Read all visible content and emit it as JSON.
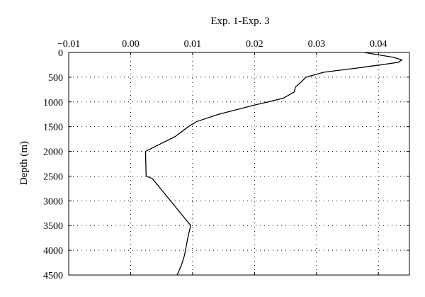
{
  "chart_data": {
    "type": "line",
    "title": "",
    "xlabel": "Exp. 1-Exp. 3",
    "ylabel": "Depth (m)",
    "xlim": [
      -0.01,
      0.045
    ],
    "ylim": [
      0,
      4500
    ],
    "y_inverted": true,
    "x_axis_position": "top",
    "grid": true,
    "x_ticks": [
      -0.01,
      0.0,
      0.01,
      0.02,
      0.03,
      0.04
    ],
    "x_tick_labels": [
      "−0.01",
      "0.00",
      "0.01",
      "0.02",
      "0.03",
      "0.04"
    ],
    "y_ticks": [
      0,
      500,
      1000,
      1500,
      2000,
      2500,
      3000,
      3500,
      4000,
      4500
    ],
    "y_tick_labels": [
      "0",
      "500",
      "1000",
      "1500",
      "2000",
      "2500",
      "3000",
      "3500",
      "4000",
      "4500"
    ],
    "series": [
      {
        "x": [
          0.0377,
          0.0425,
          0.0438,
          0.0432,
          0.0375,
          0.0312,
          0.0283,
          0.0275,
          0.0266,
          0.0264,
          0.0247,
          0.0222,
          0.0198,
          0.0142,
          0.0106,
          0.0093,
          0.0072,
          0.0048,
          0.0032,
          0.0024,
          0.0025,
          0.0035,
          0.0097,
          0.0093,
          0.009,
          0.0087,
          0.0082,
          0.0075
        ],
        "y": [
          0,
          100,
          150,
          200,
          300,
          400,
          500,
          600,
          700,
          800,
          920,
          1000,
          1070,
          1250,
          1400,
          1500,
          1700,
          1850,
          1950,
          2000,
          2500,
          2550,
          3500,
          3700,
          3900,
          4100,
          4300,
          4500
        ]
      }
    ]
  }
}
